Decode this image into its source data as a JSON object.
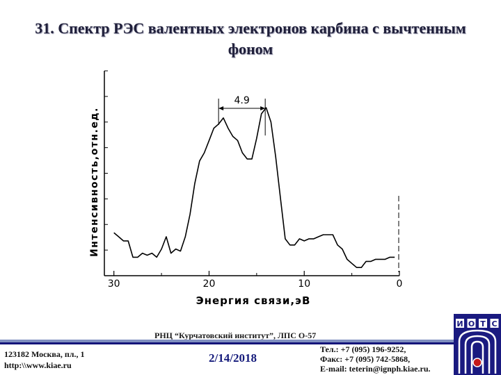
{
  "slide": {
    "title_line1": "31. Спектр РЭС валентных электронов карбина с вычтенным",
    "title_line2": "фоном"
  },
  "chart_data": {
    "type": "line",
    "xlabel": "Энергия связи,эВ",
    "ylabel": "Интенсивность,отн.ед.",
    "x_reversed": true,
    "xlim": [
      31,
      0
    ],
    "ylim": [
      0,
      1
    ],
    "x_ticks": [
      30,
      20,
      10,
      0
    ],
    "y_axis_tick_labels": false,
    "annotation": {
      "text": "4.9",
      "x_start": 19.0,
      "x_end": 14.1
    },
    "series": [
      {
        "x": [
          30.0,
          29.5,
          29.0,
          28.5,
          28.0,
          27.5,
          27.0,
          26.5,
          26.0,
          25.5,
          25.0,
          24.5,
          24.0,
          23.5,
          23.0,
          22.5,
          22.0,
          21.5,
          21.0,
          20.5,
          20.0,
          19.5,
          19.0,
          18.5,
          18.0,
          17.5,
          17.0,
          16.5,
          16.0,
          15.5,
          15.0,
          14.5,
          14.0,
          13.5,
          13.0,
          12.5,
          12.0,
          11.5,
          11.0,
          10.5,
          10.0,
          9.5,
          9.0,
          8.5,
          8.0,
          7.5,
          7.0,
          6.5,
          6.0,
          5.5,
          5.0,
          4.5,
          4.0,
          3.5,
          3.0,
          2.5,
          2.0,
          1.5,
          1.0,
          0.5
        ],
        "y": [
          0.21,
          0.19,
          0.17,
          0.17,
          0.09,
          0.09,
          0.11,
          0.1,
          0.11,
          0.09,
          0.13,
          0.19,
          0.11,
          0.13,
          0.12,
          0.19,
          0.3,
          0.45,
          0.56,
          0.6,
          0.66,
          0.72,
          0.74,
          0.77,
          0.72,
          0.68,
          0.66,
          0.6,
          0.57,
          0.57,
          0.67,
          0.79,
          0.82,
          0.75,
          0.58,
          0.38,
          0.18,
          0.15,
          0.15,
          0.18,
          0.17,
          0.18,
          0.18,
          0.19,
          0.2,
          0.2,
          0.2,
          0.15,
          0.13,
          0.08,
          0.06,
          0.04,
          0.04,
          0.07,
          0.07,
          0.08,
          0.08,
          0.08,
          0.09,
          0.09
        ]
      }
    ]
  },
  "footer": {
    "org": "РНЦ “Курчатовский институт”,   ЛПС О-57",
    "address_line1": "123182 Москва, пл., 1",
    "address_line2": "http:\\\\www.kiae.ru",
    "date": "2/14/2018",
    "phone": "Тел.:    +7 (095) 196-9252,",
    "fax": "Факс:  +7 (095) 742-5868,",
    "email": "E-mail: teterin@ignph.kiae.ru."
  },
  "logo": {
    "letters": [
      "И",
      "О",
      "Т",
      "С"
    ]
  },
  "colors": {
    "accent_blue": "#161c7c",
    "logo_blue": "#1a1a80",
    "logo_red": "#c41a1a"
  }
}
